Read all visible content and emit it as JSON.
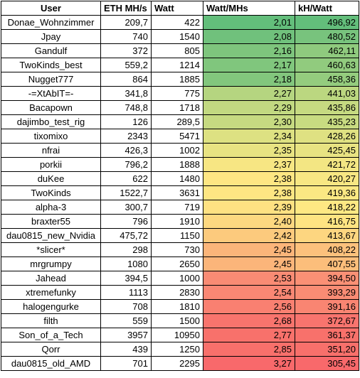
{
  "headers": {
    "user": "User",
    "eth": "ETH MH/s",
    "watt": "Watt",
    "watt_per_mhs": "Watt/MHs",
    "kh_per_watt": "kH/Watt"
  },
  "rows": [
    {
      "user": "Donae_Wohnzimmer",
      "eth": "209,7",
      "watt": "422",
      "wpm": "2,01",
      "khw": "496,92",
      "wpm_color": "#63BE7B",
      "khw_color": "#63BE7B"
    },
    {
      "user": "Jpay",
      "eth": "740",
      "watt": "1540",
      "wpm": "2,08",
      "khw": "480,52",
      "wpm_color": "#70C17C",
      "khw_color": "#78C37D"
    },
    {
      "user": "Gandulf",
      "eth": "372",
      "watt": "805",
      "wpm": "2,16",
      "khw": "462,11",
      "wpm_color": "#7EC57D",
      "khw_color": "#8FCA7E"
    },
    {
      "user": "TwoKinds_best",
      "eth": "559,2",
      "watt": "1214",
      "wpm": "2,17",
      "khw": "460,63",
      "wpm_color": "#80C67D",
      "khw_color": "#91CB7E"
    },
    {
      "user": "Nugget777",
      "eth": "864",
      "watt": "1885",
      "wpm": "2,18",
      "khw": "458,36",
      "wpm_color": "#82C67D",
      "khw_color": "#94CC7E"
    },
    {
      "user": "-=XtAbIT=-",
      "eth": "341,8",
      "watt": "775",
      "wpm": "2,27",
      "khw": "441,03",
      "wpm_color": "#B5D580",
      "khw_color": "#BBD780"
    },
    {
      "user": "Bacapown",
      "eth": "748,8",
      "watt": "1718",
      "wpm": "2,29",
      "khw": "435,86",
      "wpm_color": "#C2D981",
      "khw_color": "#C6DA81"
    },
    {
      "user": "dajimbo_test_rig",
      "eth": "126",
      "watt": "289,5",
      "wpm": "2,30",
      "khw": "435,23",
      "wpm_color": "#C6DA81",
      "khw_color": "#C8DB81"
    },
    {
      "user": "tixomixo",
      "eth": "2343",
      "watt": "5471",
      "wpm": "2,34",
      "khw": "428,26",
      "wpm_color": "#DDE182",
      "khw_color": "#DFE182"
    },
    {
      "user": "nfrai",
      "eth": "426,3",
      "watt": "1002",
      "wpm": "2,35",
      "khw": "425,45",
      "wpm_color": "#E8E382",
      "khw_color": "#E8E382"
    },
    {
      "user": "porkii",
      "eth": "796,2",
      "watt": "1888",
      "wpm": "2,37",
      "khw": "421,72",
      "wpm_color": "#F7E683",
      "khw_color": "#F3E683"
    },
    {
      "user": "duKee",
      "eth": "622",
      "watt": "1480",
      "wpm": "2,38",
      "khw": "420,27",
      "wpm_color": "#FEE683",
      "khw_color": "#F8E783"
    },
    {
      "user": "TwoKinds",
      "eth": "1522,7",
      "watt": "3631",
      "wpm": "2,38",
      "khw": "419,36",
      "wpm_color": "#FEE683",
      "khw_color": "#FBE883"
    },
    {
      "user": "alpha-3",
      "eth": "300,7",
      "watt": "719",
      "wpm": "2,39",
      "khw": "418,22",
      "wpm_color": "#FEE182",
      "khw_color": "#FEE883"
    },
    {
      "user": "braxter55",
      "eth": "796",
      "watt": "1910",
      "wpm": "2,40",
      "khw": "416,75",
      "wpm_color": "#FDD880",
      "khw_color": "#FEE482"
    },
    {
      "user": "dau0815_new_Nvidia",
      "eth": "475,72",
      "watt": "1150",
      "wpm": "2,42",
      "khw": "413,67",
      "wpm_color": "#FCCA7D",
      "khw_color": "#FDD680"
    },
    {
      "user": "*slicer*",
      "eth": "298",
      "watt": "730",
      "wpm": "2,45",
      "khw": "408,22",
      "wpm_color": "#FBB57A",
      "khw_color": "#FCC17C"
    },
    {
      "user": "mrgrumpy",
      "eth": "1080",
      "watt": "2650",
      "wpm": "2,45",
      "khw": "407,55",
      "wpm_color": "#FBB57A",
      "khw_color": "#FCBE7B"
    },
    {
      "user": "Jahead",
      "eth": "394,5",
      "watt": "1000",
      "wpm": "2,53",
      "khw": "394,50",
      "wpm_color": "#F98B74",
      "khw_color": "#FA9075"
    },
    {
      "user": "xtremefunky",
      "eth": "1113",
      "watt": "2830",
      "wpm": "2,54",
      "khw": "393,29",
      "wpm_color": "#F98774",
      "khw_color": "#F98C74"
    },
    {
      "user": "halogengurke",
      "eth": "708",
      "watt": "1810",
      "wpm": "2,56",
      "khw": "391,16",
      "wpm_color": "#F98071",
      "khw_color": "#F98572"
    },
    {
      "user": "filth",
      "eth": "559",
      "watt": "1500",
      "wpm": "2,68",
      "khw": "372,67",
      "wpm_color": "#F8746D",
      "khw_color": "#F8746E"
    },
    {
      "user": "Son_of_a_Tech",
      "eth": "3957",
      "watt": "10950",
      "wpm": "2,77",
      "khw": "361,37",
      "wpm_color": "#F8716B",
      "khw_color": "#F8716B"
    },
    {
      "user": "Qorr",
      "eth": "439",
      "watt": "1250",
      "wpm": "2,85",
      "khw": "351,20",
      "wpm_color": "#F8706B",
      "khw_color": "#F8706B"
    },
    {
      "user": "dau0815_old_AMD",
      "eth": "701",
      "watt": "2295",
      "wpm": "3,27",
      "khw": "305,45",
      "wpm_color": "#F8696B",
      "khw_color": "#F8696B"
    }
  ]
}
